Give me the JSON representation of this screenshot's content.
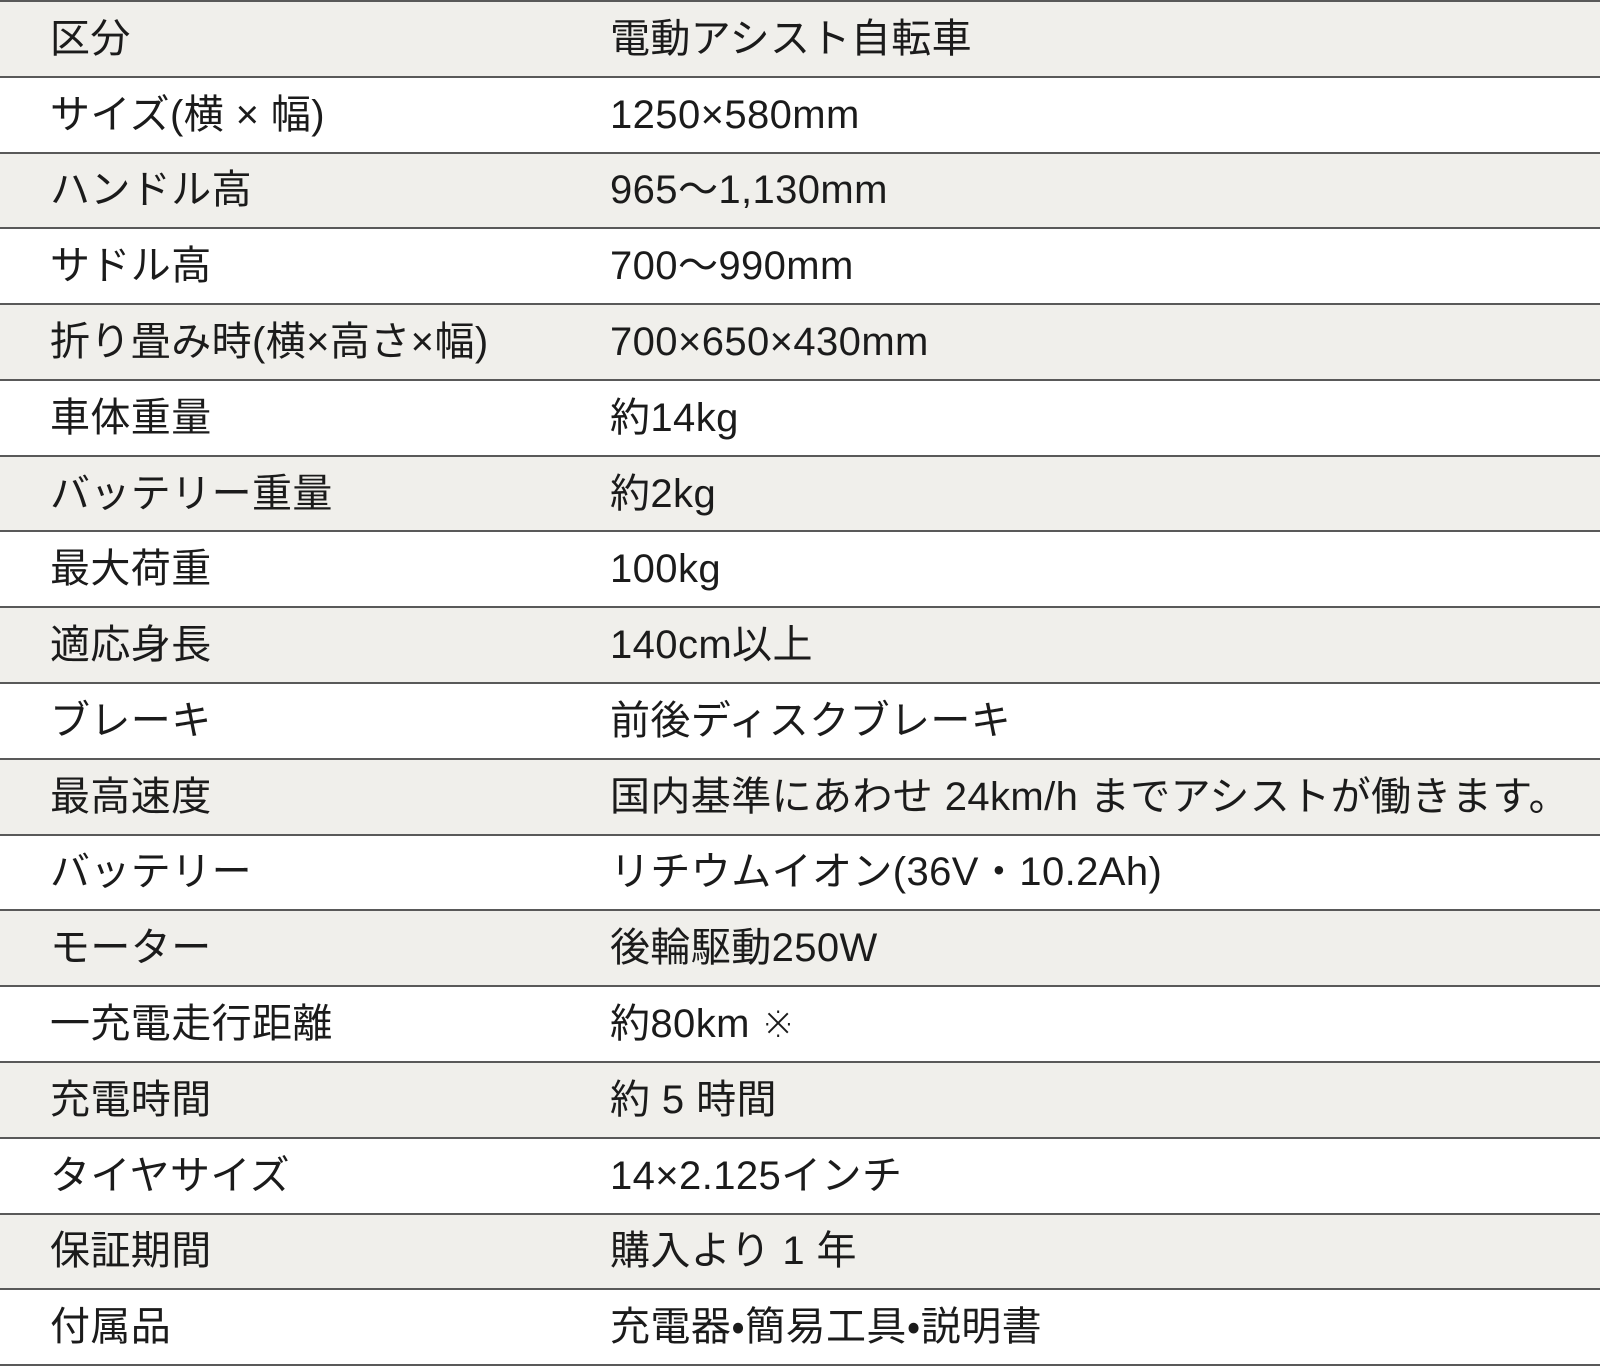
{
  "colors": {
    "row_alt_background": "#f0efeb",
    "row_background": "#ffffff",
    "border": "#595959",
    "text": "#1b1b1b"
  },
  "table": {
    "rows": [
      {
        "label": "区分",
        "value": "電動アシスト自転車"
      },
      {
        "label": "サイズ(横 × 幅)",
        "value": "1250×580mm"
      },
      {
        "label": "ハンドル高",
        "value": "965〜1,130mm"
      },
      {
        "label": "サドル高",
        "value": "700〜990mm"
      },
      {
        "label": "折り畳み時(横×高さ×幅)",
        "value": "700×650×430mm"
      },
      {
        "label": "車体重量",
        "value": "約14kg"
      },
      {
        "label": "バッテリー重量",
        "value": "約2kg"
      },
      {
        "label": "最大荷重",
        "value": "100kg"
      },
      {
        "label": "適応身長",
        "value": "140cm以上"
      },
      {
        "label": "ブレーキ",
        "value": "前後ディスクブレーキ"
      },
      {
        "label": "最高速度",
        "value": "国内基準にあわせ 24km/h までアシストが働きます。"
      },
      {
        "label": "バッテリー",
        "value": "リチウムイオン(36V・10.2Ah)"
      },
      {
        "label": "モーター",
        "value": "後輪駆動250W"
      },
      {
        "label": "一充電走行距離",
        "value": "約80km ※"
      },
      {
        "label": "充電時間",
        "value": "約 5 時間"
      },
      {
        "label": "タイヤサイズ",
        "value": "14×2.125インチ"
      },
      {
        "label": "保証期間",
        "value": "購入より 1 年"
      },
      {
        "label": "付属品",
        "value": "充電器・簡易工具・説明書"
      }
    ]
  }
}
